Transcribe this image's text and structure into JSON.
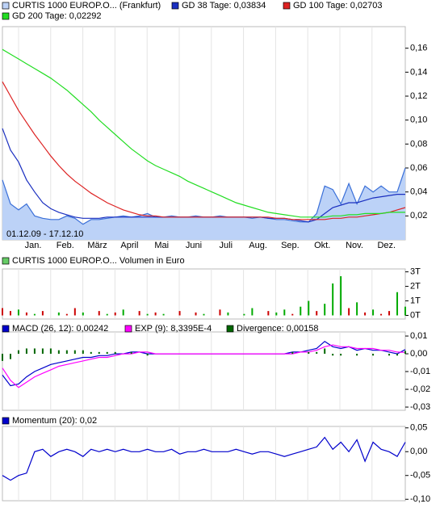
{
  "chart_data": [
    {
      "type": "line",
      "annotation": "01.12.09 - 17.12.10",
      "x_labels": [
        "Jan.",
        "Feb.",
        "März",
        "April",
        "Mai",
        "Juni",
        "Juli",
        "Aug.",
        "Sep.",
        "Okt.",
        "Nov.",
        "Dez."
      ],
      "ylim": [
        0,
        0.178
      ],
      "yticks": [
        {
          "value": 0.02,
          "label": "0,02"
        },
        {
          "value": 0.04,
          "label": "0,04"
        },
        {
          "value": 0.06,
          "label": "0,06"
        },
        {
          "value": 0.08,
          "label": "0,08"
        },
        {
          "value": 0.1,
          "label": "0,10"
        },
        {
          "value": 0.12,
          "label": "0,12"
        },
        {
          "value": 0.14,
          "label": "0,14"
        },
        {
          "value": 0.16,
          "label": "0,16"
        }
      ],
      "series": [
        {
          "name": "CURTIS 1000 EUROP.O... (Frankfurt)",
          "style": "area",
          "color": "#3a6fd8",
          "fill": "#bcd2f7",
          "values": [
            0.05,
            0.03,
            0.025,
            0.03,
            0.02,
            0.018,
            0.017,
            0.017,
            0.02,
            0.018,
            0.013,
            0.017,
            0.017,
            0.018,
            0.019,
            0.02,
            0.019,
            0.02,
            0.022,
            0.019,
            0.019,
            0.02,
            0.019,
            0.019,
            0.02,
            0.019,
            0.019,
            0.02,
            0.019,
            0.019,
            0.019,
            0.018,
            0.019,
            0.018,
            0.017,
            0.017,
            0.016,
            0.015,
            0.015,
            0.022,
            0.045,
            0.042,
            0.03,
            0.047,
            0.03,
            0.045,
            0.04,
            0.045,
            0.04,
            0.04,
            0.06
          ]
        },
        {
          "name": "GD 38 Tage: 0,03834",
          "style": "line",
          "color": "#1a2fc0",
          "values": [
            0.093,
            0.075,
            0.065,
            0.05,
            0.04,
            0.031,
            0.026,
            0.023,
            0.021,
            0.019,
            0.018,
            0.018,
            0.018,
            0.019,
            0.019,
            0.019,
            0.019,
            0.019,
            0.019,
            0.019,
            0.019,
            0.019,
            0.019,
            0.019,
            0.019,
            0.019,
            0.019,
            0.019,
            0.019,
            0.019,
            0.019,
            0.019,
            0.019,
            0.018,
            0.018,
            0.018,
            0.017,
            0.016,
            0.015,
            0.017,
            0.022,
            0.027,
            0.029,
            0.031,
            0.031,
            0.033,
            0.035,
            0.036,
            0.037,
            0.038,
            0.038
          ]
        },
        {
          "name": "GD 100 Tage: 0,02703",
          "style": "line",
          "color": "#dd2222",
          "values": [
            0.132,
            0.12,
            0.108,
            0.098,
            0.088,
            0.079,
            0.07,
            0.062,
            0.055,
            0.049,
            0.044,
            0.039,
            0.035,
            0.031,
            0.028,
            0.025,
            0.023,
            0.021,
            0.02,
            0.02,
            0.019,
            0.019,
            0.019,
            0.019,
            0.019,
            0.019,
            0.019,
            0.019,
            0.019,
            0.019,
            0.019,
            0.019,
            0.019,
            0.019,
            0.018,
            0.018,
            0.017,
            0.017,
            0.017,
            0.017,
            0.017,
            0.018,
            0.018,
            0.019,
            0.019,
            0.02,
            0.021,
            0.022,
            0.023,
            0.025,
            0.027
          ]
        },
        {
          "name": "GD 200 Tage: 0,02292",
          "style": "line",
          "color": "#22dd22",
          "values": [
            0.159,
            0.155,
            0.151,
            0.147,
            0.143,
            0.139,
            0.135,
            0.13,
            0.125,
            0.119,
            0.113,
            0.107,
            0.1,
            0.094,
            0.088,
            0.082,
            0.076,
            0.071,
            0.066,
            0.062,
            0.059,
            0.056,
            0.053,
            0.049,
            0.046,
            0.043,
            0.04,
            0.037,
            0.034,
            0.031,
            0.029,
            0.027,
            0.025,
            0.023,
            0.022,
            0.021,
            0.02,
            0.019,
            0.019,
            0.019,
            0.019,
            0.02,
            0.02,
            0.021,
            0.021,
            0.022,
            0.022,
            0.022,
            0.023,
            0.023,
            0.023
          ]
        }
      ]
    },
    {
      "type": "bar",
      "ylim": [
        -0.25,
        3.2
      ],
      "yticks": [
        {
          "value": 0,
          "label": "0T"
        },
        {
          "value": 1,
          "label": "1T"
        },
        {
          "value": 2,
          "label": "2T"
        },
        {
          "value": 3,
          "label": "3T"
        }
      ],
      "series": [
        {
          "name": "CURTIS 1000 EUROP.O... Volumen in Euro",
          "style": "bar",
          "color": "#66cc66",
          "values": [
            0.5,
            0.3,
            0.4,
            0.2,
            0.1,
            0.3,
            0,
            0.2,
            0.1,
            0.5,
            0.2,
            0,
            0.3,
            0.1,
            0.2,
            0.4,
            0,
            0.3,
            0.1,
            0.2,
            0.1,
            0,
            0.3,
            0,
            0.2,
            0.1,
            0,
            0.4,
            0.2,
            0,
            0.1,
            0.5,
            0,
            0.3,
            0.2,
            0.4,
            0.1,
            0.6,
            1.0,
            0.3,
            0.8,
            2.2,
            2.7,
            0.5,
            0.9,
            0.2,
            0.4,
            0.1,
            0.3,
            1.6,
            0.6
          ],
          "colors": [
            "#cc0000",
            "#cc0000",
            "#00aa00",
            "#cc0000",
            "#00aa00",
            "#cc0000",
            "#00aa00",
            "#00aa00",
            "#cc0000",
            "#cc0000",
            "#00aa00",
            "#cc0000",
            "#cc0000",
            "#00aa00",
            "#cc0000",
            "#00aa00",
            "#00aa00",
            "#cc0000",
            "#00aa00",
            "#cc0000",
            "#00aa00",
            "#cc0000",
            "#cc0000",
            "#00aa00",
            "#cc0000",
            "#00aa00",
            "#00aa00",
            "#cc0000",
            "#00aa00",
            "#cc0000",
            "#00aa00",
            "#00aa00",
            "#cc0000",
            "#cc0000",
            "#00aa00",
            "#00aa00",
            "#cc0000",
            "#00aa00",
            "#00aa00",
            "#cc0000",
            "#00aa00",
            "#00aa00",
            "#00aa00",
            "#cc0000",
            "#00aa00",
            "#cc0000",
            "#00aa00",
            "#cc0000",
            "#cc0000",
            "#00aa00",
            "#00aa00"
          ]
        }
      ]
    },
    {
      "type": "line",
      "ylim": [
        -0.0318,
        0.0123
      ],
      "yticks": [
        {
          "value": -0.03,
          "label": "-0,03"
        },
        {
          "value": -0.02,
          "label": "-0,02"
        },
        {
          "value": -0.01,
          "label": "-0,01"
        },
        {
          "value": 0,
          "label": "0,00"
        },
        {
          "value": 0.01,
          "label": "0,01"
        }
      ],
      "series": [
        {
          "name": "MACD (26, 12): 0,00242",
          "style": "line",
          "color": "#0000cc",
          "values": [
            -0.012,
            -0.018,
            -0.017,
            -0.013,
            -0.01,
            -0.008,
            -0.006,
            -0.005,
            -0.004,
            -0.003,
            -0.002,
            -0.002,
            -0.001,
            -0.001,
            0,
            0,
            0.001,
            0.001,
            0,
            0,
            0,
            0,
            0,
            0,
            0,
            0,
            0,
            0,
            0,
            0,
            0,
            0,
            0,
            0,
            0,
            0,
            0.001,
            0.001,
            0.002,
            0.003,
            0.007,
            0.004,
            0.003,
            0.004,
            0.002,
            0.003,
            0.002,
            0.002,
            0.001,
            0,
            0.0024
          ]
        },
        {
          "name": "EXP (9): 8,3395E-4",
          "style": "line",
          "color": "#ff00ff",
          "values": [
            -0.008,
            -0.015,
            -0.019,
            -0.016,
            -0.013,
            -0.011,
            -0.009,
            -0.007,
            -0.006,
            -0.005,
            -0.004,
            -0.003,
            -0.002,
            -0.002,
            -0.001,
            0,
            0,
            0.001,
            0.001,
            0,
            0,
            0,
            0,
            0,
            0,
            0,
            0,
            0,
            0,
            0,
            0,
            0,
            0,
            0,
            0,
            0,
            0,
            0.001,
            0.001,
            0.002,
            0.004,
            0.005,
            0.004,
            0.004,
            0.003,
            0.003,
            0.003,
            0.002,
            0.002,
            0.001,
            0.0008
          ]
        },
        {
          "name": "Divergence: 0,00158",
          "style": "bar",
          "color": "#006600",
          "values": [
            -0.004,
            -0.003,
            0.002,
            0.003,
            0.003,
            0.003,
            0.003,
            0.002,
            0.002,
            0.002,
            0.002,
            0.001,
            0.001,
            0.001,
            0.001,
            0,
            0.001,
            0,
            -0.001,
            0,
            0,
            0,
            0,
            0,
            0,
            0,
            0,
            0,
            0,
            0,
            0,
            0,
            0,
            0,
            0,
            0,
            0.001,
            0,
            0.001,
            0.001,
            0.003,
            -0.001,
            -0.001,
            0,
            -0.001,
            0,
            -0.001,
            0,
            -0.001,
            -0.001,
            0.0016
          ]
        }
      ]
    },
    {
      "type": "line",
      "ylim": [
        -0.103,
        0.053
      ],
      "yticks": [
        {
          "value": -0.1,
          "label": "-0,10"
        },
        {
          "value": -0.05,
          "label": "-0,05"
        },
        {
          "value": 0,
          "label": "0,00"
        },
        {
          "value": 0.05,
          "label": "0,05"
        }
      ],
      "series": [
        {
          "name": "Momentum (20): 0,02",
          "style": "line",
          "color": "#0000cc",
          "values": [
            -0.05,
            -0.06,
            -0.05,
            -0.045,
            0,
            0.005,
            -0.01,
            0,
            0.005,
            0,
            -0.01,
            0.005,
            0,
            0.005,
            0,
            0.005,
            0,
            0,
            0.005,
            0,
            0,
            0.005,
            -0.005,
            0,
            0,
            0.005,
            0,
            0,
            0,
            0.005,
            0,
            -0.005,
            0,
            0,
            -0.005,
            -0.01,
            -0.005,
            0,
            0.005,
            0.01,
            0.03,
            0.005,
            0.02,
            0,
            0.025,
            -0.02,
            0.02,
            0.005,
            0,
            -0.01,
            0.02
          ]
        }
      ]
    }
  ]
}
